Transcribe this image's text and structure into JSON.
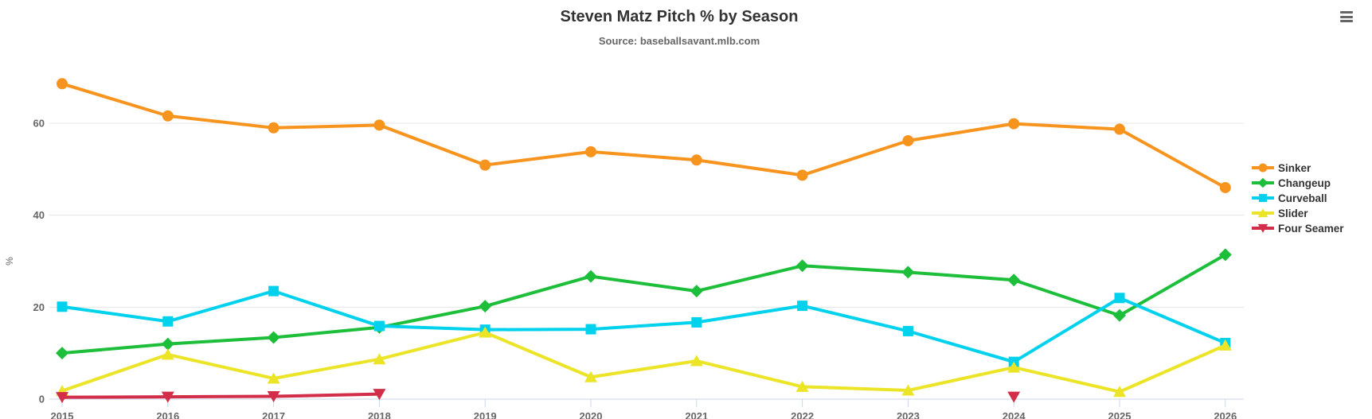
{
  "chart_data": {
    "type": "line",
    "title": "Steven Matz Pitch % by Season",
    "subtitle": "Source: baseballsavant.mlb.com",
    "xlabel": "",
    "ylabel": "%",
    "categories": [
      "2015",
      "2016",
      "2017",
      "2018",
      "2019",
      "2020",
      "2021",
      "2022",
      "2023",
      "2024",
      "2025",
      "2026"
    ],
    "yticks": [
      0,
      20,
      40,
      60
    ],
    "ylim": [
      0,
      73
    ],
    "grid": true,
    "legend_position": "right-middle",
    "series": [
      {
        "name": "Sinker",
        "color": "#f7941e",
        "marker": "circle",
        "values": [
          68.6,
          61.6,
          59.0,
          59.6,
          50.9,
          53.8,
          52.0,
          48.7,
          56.2,
          59.9,
          58.7,
          46.0
        ]
      },
      {
        "name": "Changeup",
        "color": "#1dbe3a",
        "marker": "diamond",
        "values": [
          10.0,
          12.0,
          13.4,
          15.6,
          20.2,
          26.7,
          23.5,
          29.0,
          27.6,
          25.9,
          18.2,
          31.4
        ]
      },
      {
        "name": "Curveball",
        "color": "#00d1ed",
        "marker": "square",
        "values": [
          20.1,
          16.9,
          23.5,
          15.9,
          15.1,
          15.2,
          16.7,
          20.3,
          14.8,
          8.1,
          22.0,
          12.2
        ]
      },
      {
        "name": "Slider",
        "color": "#ebe427",
        "marker": "triangle",
        "values": [
          1.8,
          9.7,
          4.5,
          8.7,
          14.5,
          4.8,
          8.3,
          2.7,
          1.9,
          6.9,
          1.6,
          11.7
        ]
      },
      {
        "name": "Four Seamer",
        "color": "#d22d49",
        "marker": "triangle-down",
        "values": [
          0.4,
          0.5,
          0.6,
          1.1,
          null,
          null,
          null,
          null,
          null,
          0.5,
          null,
          null
        ]
      }
    ],
    "colors": {
      "gridline": "#e6e6e6",
      "axis_line": "#ccd6eb",
      "title_text": "#333333",
      "subtitle_text": "#666666",
      "axis_label_text": "#666666"
    }
  },
  "toolbar": {
    "context_menu_icon": "hamburger-icon"
  }
}
